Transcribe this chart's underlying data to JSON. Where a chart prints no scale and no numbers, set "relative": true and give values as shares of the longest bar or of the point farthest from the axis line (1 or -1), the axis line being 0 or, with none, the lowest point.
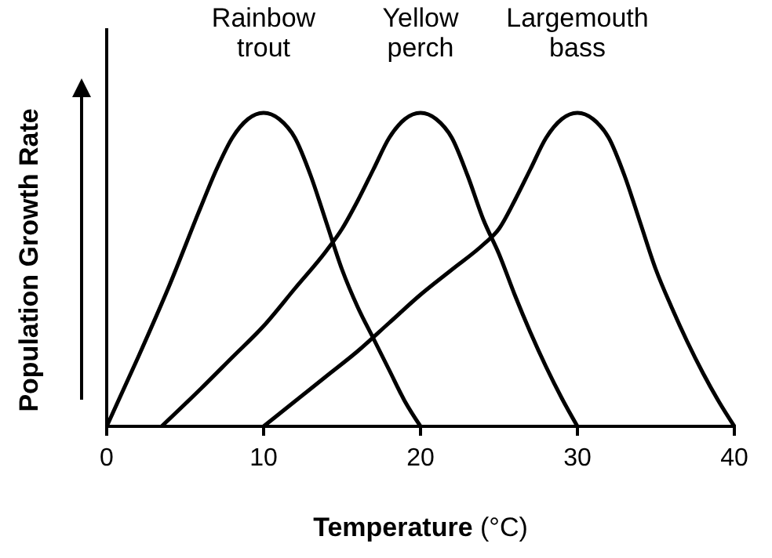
{
  "chart_data": {
    "type": "line",
    "relative": true,
    "xlabel": "Temperature (°C)",
    "ylabel": "Population Growth Rate",
    "xlim": [
      0,
      40
    ],
    "xticks": [
      0,
      10,
      20,
      30,
      40
    ],
    "grid": false,
    "legend": false,
    "marker": "none",
    "line_style": "solid",
    "series": [
      {
        "name": "Rainbow trout",
        "color": "#000000",
        "x": [
          0,
          2,
          4,
          6,
          7,
          8,
          9,
          10,
          11,
          12,
          13,
          14,
          15,
          16,
          17,
          18,
          19,
          20
        ],
        "values": [
          0,
          0.22,
          0.45,
          0.7,
          0.82,
          0.92,
          0.98,
          1,
          0.98,
          0.92,
          0.8,
          0.65,
          0.5,
          0.38,
          0.28,
          0.18,
          0.08,
          0
        ]
      },
      {
        "name": "Yellow perch",
        "color": "#000000",
        "x": [
          3.5,
          6,
          8,
          10,
          12,
          14,
          15,
          16,
          17,
          18,
          19,
          20,
          21,
          22,
          23,
          24,
          25,
          26,
          27,
          28,
          29,
          30
        ],
        "values": [
          0,
          0.12,
          0.22,
          0.32,
          0.44,
          0.56,
          0.63,
          0.72,
          0.82,
          0.92,
          0.98,
          1,
          0.98,
          0.92,
          0.8,
          0.66,
          0.55,
          0.42,
          0.3,
          0.19,
          0.09,
          0
        ]
      },
      {
        "name": "Largemouth bass",
        "color": "#000000",
        "x": [
          10,
          12,
          14,
          16,
          18,
          20,
          22,
          24,
          25,
          26,
          27,
          28,
          29,
          30,
          31,
          32,
          33,
          34,
          35,
          36,
          37,
          38,
          39,
          40
        ],
        "values": [
          0,
          0.08,
          0.16,
          0.24,
          0.33,
          0.42,
          0.5,
          0.58,
          0.63,
          0.72,
          0.82,
          0.92,
          0.98,
          1,
          0.98,
          0.92,
          0.8,
          0.65,
          0.5,
          0.38,
          0.27,
          0.17,
          0.08,
          0
        ]
      }
    ]
  }
}
